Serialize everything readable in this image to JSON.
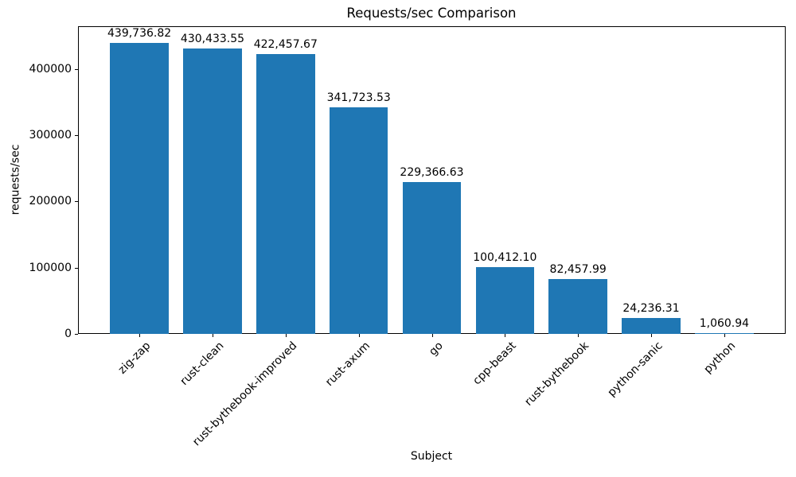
{
  "chart_data": {
    "type": "bar",
    "title": "Requests/sec Comparison",
    "xlabel": "Subject",
    "ylabel": "requests/sec",
    "categories": [
      "zig-zap",
      "rust-clean",
      "rust-bythebook-improved",
      "rust-axum",
      "go",
      "cpp-beast",
      "rust-bythebook",
      "python-sanic",
      "python"
    ],
    "values": [
      439736.82,
      430433.55,
      422457.67,
      341723.53,
      229366.63,
      100412.1,
      82457.99,
      24236.31,
      1060.94
    ],
    "value_labels": [
      "439,736.82",
      "430,433.55",
      "422,457.67",
      "341,723.53",
      "229,366.63",
      "100,412.10",
      "82,457.99",
      "24,236.31",
      "1,060.94"
    ],
    "yticks": [
      0,
      100000,
      200000,
      300000,
      400000
    ],
    "ytick_labels": [
      "0",
      "100000",
      "200000",
      "300000",
      "400000"
    ],
    "ylim": [
      0,
      464400
    ],
    "bar_color": "#1f77b4",
    "grid": false,
    "legend": null,
    "x_tick_rotation": 45
  }
}
